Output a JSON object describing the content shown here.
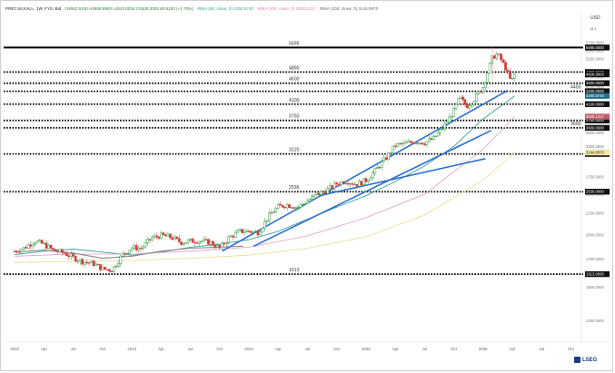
{
  "header": {
    "symbol": "PREC.M,XAU=, 1W, FYS, Bid",
    "ohlc": "O4682.9100  H4888.8900  L4643.0024  C4828.3003  80.8120 (+1.70%)",
    "ma50": "WMA (50, close, 0)  4290.5740",
    "ma100": "WMA (100, close, 0)  3828.1317",
    "ma200": "WMA (200, close, 0)  3144.8970"
  },
  "axis": {
    "currency": "USD",
    "currency_sub": "M 1"
  },
  "brand": {
    "name": "LSEG"
  },
  "colors": {
    "up": "#2e9c44",
    "down": "#d43c3c",
    "ma50": "#3aa19a",
    "ma100": "#e89ac6",
    "ma200": "#ecdc8c",
    "trend": "#2c6fd1",
    "gray_ma": "#8a8a8a"
  },
  "chart_data": {
    "type": "line",
    "title": "",
    "y_scale": "log",
    "ylim": [
      1150,
      6100
    ],
    "x_ticks": [
      "2022",
      "Apr",
      "Jul",
      "Oct",
      "2023",
      "Apr",
      "Jul",
      "Oct",
      "2024",
      "Apr",
      "Jul",
      "Oct",
      "2025",
      "Apr",
      "Jul",
      "Oct",
      "2026",
      "Apr",
      "Jul",
      "Oct"
    ],
    "y_ticks": [
      "5750.0000",
      "5500.0000",
      "5250.0000",
      "4750.0000",
      "4500.0000",
      "4250.0000",
      "3500.0000",
      "3250.0000",
      "2750.0000",
      "2500.0000",
      "2250.0000",
      "2000.0000",
      "1750.0000",
      "1500.0000",
      "1250.0000"
    ],
    "levels": [
      {
        "value": 5595,
        "label": "5595",
        "axis_label": "5595.0000",
        "style": "solid"
      },
      {
        "value": 4890,
        "label": "4890",
        "axis_label": "4890.0000",
        "style": "dotted"
      },
      {
        "value": 4600,
        "label": "4600",
        "axis_label": "4600.0000",
        "style": "dotted"
      },
      {
        "value": 4400,
        "label": "4400",
        "axis_label": "4400.0000",
        "style": "dotted"
      },
      {
        "value": 4100,
        "label": "4100",
        "axis_label": "4100.0000",
        "style": "dotted"
      },
      {
        "value": 3750,
        "label": "3750",
        "axis_label": "3750.0000",
        "style": "dotted"
      },
      {
        "value": 3600,
        "label": "3600",
        "axis_label": "3600.0000",
        "style": "dotted"
      },
      {
        "value": 3120,
        "label": "3120",
        "axis_label": "3120.0000",
        "style": "dotted"
      },
      {
        "value": 2536,
        "label": "2536",
        "axis_label": "2536.0000",
        "style": "dotted"
      },
      {
        "value": 1613,
        "label": "1613",
        "axis_label": "1613.0000",
        "style": "dotted"
      }
    ],
    "price_tags": [
      {
        "value": 4828.3003,
        "label": "4828.3003",
        "kind": "price"
      },
      {
        "value": 4290.574,
        "label": "4290.5740",
        "kind": "ma50"
      },
      {
        "value": 3828.1317,
        "label": "3828.1317",
        "kind": "ma100"
      },
      {
        "value": 3144.897,
        "label": "3144.8970",
        "kind": "ma200"
      }
    ],
    "trendlines": [
      {
        "x": [
          2023.77,
          2026.21
        ],
        "y": [
          1830,
          4420
        ]
      },
      {
        "x": [
          2024.04,
          2026.07
        ],
        "y": [
          1880,
          3550
        ]
      },
      {
        "x": [
          2024.6,
          2026.02
        ],
        "y": [
          2480,
          3040
        ]
      }
    ],
    "series": [
      {
        "key": "price",
        "values": [
          [
            2022.0,
            1829
          ],
          [
            2022.08,
            1862
          ],
          [
            2022.17,
            1936
          ],
          [
            2022.25,
            1897
          ],
          [
            2022.33,
            1837
          ],
          [
            2022.42,
            1812
          ],
          [
            2022.5,
            1766
          ],
          [
            2022.58,
            1727
          ],
          [
            2022.67,
            1710
          ],
          [
            2022.75,
            1660
          ],
          [
            2022.83,
            1650
          ],
          [
            2022.92,
            1795
          ],
          [
            2023.0,
            1866
          ],
          [
            2023.08,
            1860
          ],
          [
            2023.17,
            1968
          ],
          [
            2023.25,
            1994
          ],
          [
            2023.33,
            1978
          ],
          [
            2023.42,
            1920
          ],
          [
            2023.5,
            1935
          ],
          [
            2023.58,
            1938
          ],
          [
            2023.67,
            1920
          ],
          [
            2023.75,
            1860
          ],
          [
            2023.83,
            1970
          ],
          [
            2023.92,
            2040
          ],
          [
            2024.0,
            2040
          ],
          [
            2024.08,
            2030
          ],
          [
            2024.17,
            2220
          ],
          [
            2024.25,
            2335
          ],
          [
            2024.33,
            2360
          ],
          [
            2024.42,
            2330
          ],
          [
            2024.5,
            2410
          ],
          [
            2024.58,
            2500
          ],
          [
            2024.67,
            2560
          ],
          [
            2024.75,
            2650
          ],
          [
            2024.83,
            2690
          ],
          [
            2024.92,
            2640
          ],
          [
            2025.0,
            2700
          ],
          [
            2025.08,
            2850
          ],
          [
            2025.17,
            3050
          ],
          [
            2025.25,
            3270
          ],
          [
            2025.33,
            3300
          ],
          [
            2025.42,
            3340
          ],
          [
            2025.5,
            3320
          ],
          [
            2025.58,
            3400
          ],
          [
            2025.67,
            3640
          ],
          [
            2025.75,
            3950
          ],
          [
            2025.8,
            4250
          ],
          [
            2025.86,
            4050
          ],
          [
            2025.92,
            4200
          ],
          [
            2025.96,
            4350
          ],
          [
            2026.0,
            4500
          ],
          [
            2026.04,
            4900
          ],
          [
            2026.08,
            5300
          ],
          [
            2026.12,
            5400
          ],
          [
            2026.16,
            5200
          ],
          [
            2026.2,
            4950
          ],
          [
            2026.24,
            4620
          ],
          [
            2026.27,
            4828
          ]
        ]
      },
      {
        "key": "ma50",
        "values": [
          [
            2022.0,
            1795
          ],
          [
            2022.25,
            1830
          ],
          [
            2022.5,
            1850
          ],
          [
            2022.75,
            1820
          ],
          [
            2023.0,
            1790
          ],
          [
            2023.25,
            1820
          ],
          [
            2023.5,
            1870
          ],
          [
            2023.75,
            1900
          ],
          [
            2024.0,
            1950
          ],
          [
            2024.25,
            2040
          ],
          [
            2024.5,
            2180
          ],
          [
            2024.75,
            2330
          ],
          [
            2025.0,
            2480
          ],
          [
            2025.25,
            2680
          ],
          [
            2025.5,
            2920
          ],
          [
            2025.75,
            3250
          ],
          [
            2026.0,
            3780
          ],
          [
            2026.27,
            4290
          ]
        ]
      },
      {
        "key": "ma100",
        "values": [
          [
            2022.0,
            1780
          ],
          [
            2022.5,
            1800
          ],
          [
            2023.0,
            1800
          ],
          [
            2023.5,
            1830
          ],
          [
            2024.0,
            1870
          ],
          [
            2024.5,
            1990
          ],
          [
            2025.0,
            2200
          ],
          [
            2025.5,
            2500
          ],
          [
            2026.0,
            3200
          ],
          [
            2026.27,
            3828
          ]
        ]
      },
      {
        "key": "ma200",
        "values": [
          [
            2022.0,
            1720
          ],
          [
            2022.5,
            1730
          ],
          [
            2023.0,
            1740
          ],
          [
            2023.5,
            1760
          ],
          [
            2024.0,
            1790
          ],
          [
            2024.5,
            1860
          ],
          [
            2025.0,
            1980
          ],
          [
            2025.5,
            2230
          ],
          [
            2026.0,
            2700
          ],
          [
            2026.27,
            3145
          ]
        ]
      },
      {
        "key": "gray_ma",
        "values": [
          [
            2022.0,
            1820
          ],
          [
            2022.25,
            1840
          ],
          [
            2022.5,
            1810
          ],
          [
            2022.75,
            1760
          ],
          [
            2023.0,
            1780
          ],
          [
            2023.25,
            1830
          ],
          [
            2023.5,
            1860
          ],
          [
            2023.75,
            1870
          ],
          [
            2023.95,
            1880
          ]
        ]
      }
    ]
  }
}
